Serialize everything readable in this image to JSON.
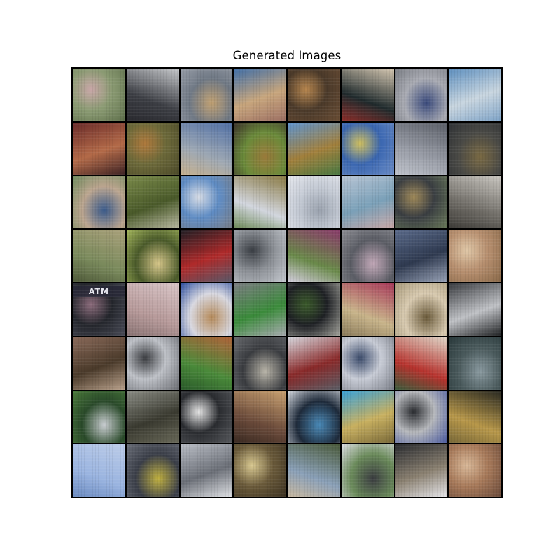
{
  "figure": {
    "title": "Generated Images"
  },
  "tiles": [
    {
      "label": "",
      "colors": [
        "#8a9a72",
        "#c9a7a8",
        "#5d6e4a"
      ]
    },
    {
      "label": "",
      "colors": [
        "#3c3e44",
        "#c7c9cc",
        "#2a2a2f"
      ]
    },
    {
      "label": "",
      "colors": [
        "#9aa0aa",
        "#c0a072",
        "#6f7884"
      ]
    },
    {
      "label": "",
      "colors": [
        "#3f6ea8",
        "#c7a57c",
        "#9c6f63"
      ]
    },
    {
      "label": "",
      "colors": [
        "#4b3a2a",
        "#b8874f",
        "#6b4e35"
      ]
    },
    {
      "label": "",
      "colors": [
        "#1f2a2c",
        "#d7c9b3",
        "#8e2e2a"
      ]
    },
    {
      "label": "",
      "colors": [
        "#7a7d84",
        "#3a4a7c",
        "#a9abb3"
      ]
    },
    {
      "label": "",
      "colors": [
        "#5d8fbf",
        "#c9d6e0",
        "#7fa4c8"
      ]
    },
    {
      "label": "",
      "colors": [
        "#6a2b2a",
        "#b36a48",
        "#3d2325"
      ]
    },
    {
      "label": "",
      "colors": [
        "#6d6a3a",
        "#b07a3d",
        "#4c4a2a"
      ]
    },
    {
      "label": "",
      "colors": [
        "#9ea8b3",
        "#4f6fa6",
        "#c7b18f"
      ]
    },
    {
      "label": "",
      "colors": [
        "#3a2f2a",
        "#9a7a3a",
        "#6a8a3a"
      ]
    },
    {
      "label": "",
      "colors": [
        "#5f95d0",
        "#a2803c",
        "#4a7a44"
      ]
    },
    {
      "label": "",
      "colors": [
        "#3a66b0",
        "#d0c060",
        "#6e8fc8"
      ]
    },
    {
      "label": "",
      "colors": [
        "#9a9ea8",
        "#5b5f68",
        "#c0c4cc"
      ]
    },
    {
      "label": "",
      "colors": [
        "#2f3236",
        "#7a6a44",
        "#4a4a46"
      ]
    },
    {
      "label": "",
      "colors": [
        "#6f8a5c",
        "#3a5a8a",
        "#bba58f"
      ]
    },
    {
      "label": "",
      "colors": [
        "#7a8a4a",
        "#4a5a2a",
        "#b8b8a0"
      ]
    },
    {
      "label": "",
      "colors": [
        "#5f8cc4",
        "#d8dde6",
        "#7a7f88"
      ]
    },
    {
      "label": "",
      "colors": [
        "#d2d6de",
        "#8a7a44",
        "#6d8a58"
      ]
    },
    {
      "label": "",
      "colors": [
        "#e6e8ee",
        "#9aa2ae",
        "#c6ccd6"
      ]
    },
    {
      "label": "",
      "colors": [
        "#b7c4d4",
        "#7aa0b8",
        "#c8a8a8"
      ]
    },
    {
      "label": "",
      "colors": [
        "#3a3e42",
        "#a08a5a",
        "#6a7a5a"
      ]
    },
    {
      "label": "",
      "colors": [
        "#6f6c66",
        "#c9c6c0",
        "#3e3c38"
      ]
    },
    {
      "label": "",
      "colors": [
        "#7a8a5c",
        "#a9a07a",
        "#4f5a3a"
      ]
    },
    {
      "label": "",
      "colors": [
        "#a6b85c",
        "#d7c78a",
        "#4a5a2a"
      ]
    },
    {
      "label": "",
      "colors": [
        "#1e1e24",
        "#b02a2a",
        "#5a5a6a"
      ]
    },
    {
      "label": "",
      "colors": [
        "#8a8e94",
        "#3a3e44",
        "#c8ccd2"
      ]
    },
    {
      "label": "",
      "colors": [
        "#6a8a4a",
        "#8a3a6a",
        "#d6d0e0"
      ]
    },
    {
      "label": "",
      "colors": [
        "#8f9096",
        "#c2a8b8",
        "#5a5c64"
      ]
    },
    {
      "label": "",
      "colors": [
        "#5a6a8a",
        "#2f3a50",
        "#9aa4b8"
      ]
    },
    {
      "label": "",
      "colors": [
        "#b78f6f",
        "#e0c8a8",
        "#8a6a4a"
      ]
    },
    {
      "label": "ATM",
      "colors": [
        "#24262c",
        "#8a6a7a",
        "#4a4c58"
      ]
    },
    {
      "label": "",
      "colors": [
        "#b79a9a",
        "#d8c4c6",
        "#8a7474"
      ]
    },
    {
      "label": "",
      "colors": [
        "#2c4ea0",
        "#b58a5a",
        "#d8d8e0"
      ]
    },
    {
      "label": "",
      "colors": [
        "#7a7c80",
        "#3a8a3a",
        "#a8aab0"
      ]
    },
    {
      "label": "",
      "colors": [
        "#1e2024",
        "#3a5a2a",
        "#a8a8a0"
      ]
    },
    {
      "label": "",
      "colors": [
        "#c8b48a",
        "#a83a5a",
        "#8a7a5a"
      ]
    },
    {
      "label": "",
      "colors": [
        "#a89a7a",
        "#6a5a3a",
        "#d8cab0"
      ]
    },
    {
      "label": "",
      "colors": [
        "#3a3c40",
        "#c0c2c6",
        "#1e2022"
      ]
    },
    {
      "label": "",
      "colors": [
        "#8a6a5a",
        "#4a3a2a",
        "#b8a08a"
      ]
    },
    {
      "label": "",
      "colors": [
        "#bfc2c8",
        "#3a3c40",
        "#6a6c72"
      ]
    },
    {
      "label": "",
      "colors": [
        "#4a8a3a",
        "#b0643a",
        "#2a5a2a"
      ]
    },
    {
      "label": "",
      "colors": [
        "#6a6c70",
        "#b8b4a8",
        "#3a3c40"
      ]
    },
    {
      "label": "",
      "colors": [
        "#d8d8de",
        "#8a2a2a",
        "#5a5c64"
      ]
    },
    {
      "label": "",
      "colors": [
        "#c8ccd6",
        "#3a4a6a",
        "#7a7e88"
      ]
    },
    {
      "label": "",
      "colors": [
        "#b7332e",
        "#e0d6c8",
        "#3a5a3a"
      ]
    },
    {
      "label": "",
      "colors": [
        "#2a3a3c",
        "#8a9aa0",
        "#4a5a5c"
      ]
    },
    {
      "label": "",
      "colors": [
        "#4a7a3a",
        "#c8ccd0",
        "#2a4a2a"
      ]
    },
    {
      "label": "",
      "colors": [
        "#8a8c84",
        "#3a3a30",
        "#6a6a5a"
      ]
    },
    {
      "label": "",
      "colors": [
        "#2a2c30",
        "#e6e6e6",
        "#5a5c60"
      ]
    },
    {
      "label": "",
      "colors": [
        "#6a4a3a",
        "#c8a070",
        "#3a2a22"
      ]
    },
    {
      "label": "",
      "colors": [
        "#d8dce2",
        "#4a8ab8",
        "#1e2a3a"
      ]
    },
    {
      "label": "",
      "colors": [
        "#3aa0d6",
        "#c8b060",
        "#7a6a3a"
      ]
    },
    {
      "label": "",
      "colors": [
        "#b6b8bc",
        "#2a2c30",
        "#4a5aa0"
      ]
    },
    {
      "label": "",
      "colors": [
        "#b8984a",
        "#2a2a22",
        "#7a6a3a"
      ]
    },
    {
      "label": "",
      "colors": [
        "#9ab4e0",
        "#bccce8",
        "#6a8ac0"
      ]
    },
    {
      "label": "",
      "colors": [
        "#6a6e78",
        "#c0b040",
        "#3a3e48"
      ]
    },
    {
      "label": "",
      "colors": [
        "#b8bcc4",
        "#6a6e76",
        "#e0e2e6"
      ]
    },
    {
      "label": "",
      "colors": [
        "#6a5a3a",
        "#d8c890",
        "#3a3020"
      ]
    },
    {
      "label": "",
      "colors": [
        "#8aa0b8",
        "#4a5a3a",
        "#c8b8a0"
      ]
    },
    {
      "label": "",
      "colors": [
        "#e0e2e6",
        "#3a3c40",
        "#6a8a5a"
      ]
    },
    {
      "label": "",
      "colors": [
        "#2a2c30",
        "#8a8070",
        "#e6e6ea"
      ]
    },
    {
      "label": "",
      "colors": [
        "#a87a5a",
        "#d8b898",
        "#6a4a3a"
      ]
    }
  ]
}
